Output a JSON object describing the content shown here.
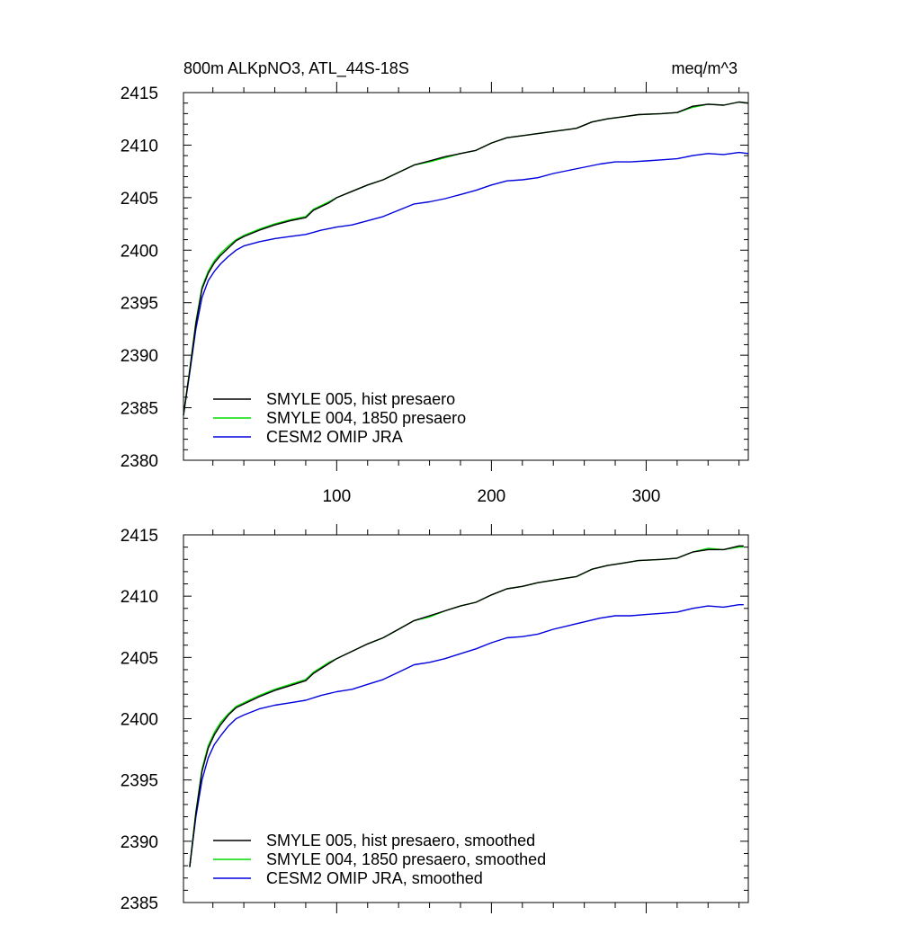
{
  "chart_data": [
    {
      "type": "line",
      "title": "800m ALKpNO3, ATL_44S-18S",
      "units": "meq/m^3",
      "xlim": [
        1,
        366
      ],
      "ylim": [
        2380,
        2415
      ],
      "xticks": [
        100,
        200,
        300
      ],
      "yticks": [
        2380,
        2385,
        2390,
        2395,
        2400,
        2405,
        2410,
        2415
      ],
      "xtick_labels_shown": true,
      "legend_position": "bottom-left",
      "series": [
        {
          "name": "SMYLE 005, hist presaero",
          "color": "#000000",
          "points": [
            [
              1,
              2384.3
            ],
            [
              5,
              2388.5
            ],
            [
              9,
              2393
            ],
            [
              13,
              2396.3
            ],
            [
              17,
              2397.8
            ],
            [
              21,
              2398.8
            ],
            [
              25,
              2399.5
            ],
            [
              30,
              2400.2
            ],
            [
              35,
              2400.9
            ],
            [
              40,
              2401.3
            ],
            [
              50,
              2401.9
            ],
            [
              60,
              2402.4
            ],
            [
              70,
              2402.8
            ],
            [
              80,
              2403.1
            ],
            [
              85,
              2403.8
            ],
            [
              95,
              2404.5
            ],
            [
              100,
              2405
            ],
            [
              110,
              2405.6
            ],
            [
              120,
              2406.2
            ],
            [
              130,
              2406.7
            ],
            [
              140,
              2407.4
            ],
            [
              150,
              2408.1
            ],
            [
              160,
              2408.5
            ],
            [
              170,
              2408.9
            ],
            [
              180,
              2409.2
            ],
            [
              190,
              2409.5
            ],
            [
              200,
              2410.2
            ],
            [
              210,
              2410.7
            ],
            [
              220,
              2410.9
            ],
            [
              230,
              2411.1
            ],
            [
              240,
              2411.3
            ],
            [
              250,
              2411.5
            ],
            [
              255,
              2411.6
            ],
            [
              265,
              2412.2
            ],
            [
              275,
              2412.5
            ],
            [
              285,
              2412.7
            ],
            [
              295,
              2412.9
            ],
            [
              310,
              2413
            ],
            [
              320,
              2413.1
            ],
            [
              330,
              2413.7
            ],
            [
              340,
              2413.9
            ],
            [
              350,
              2413.8
            ],
            [
              360,
              2414.1
            ],
            [
              366,
              2414
            ]
          ]
        },
        {
          "name": "SMYLE 004, 1850 presaero",
          "color": "#00dd00",
          "points": [
            [
              1,
              2384.3
            ],
            [
              5,
              2388.6
            ],
            [
              9,
              2393.2
            ],
            [
              13,
              2396.5
            ],
            [
              17,
              2398
            ],
            [
              21,
              2399
            ],
            [
              25,
              2399.7
            ],
            [
              30,
              2400.4
            ],
            [
              35,
              2401
            ],
            [
              40,
              2401.4
            ],
            [
              50,
              2402
            ],
            [
              60,
              2402.5
            ],
            [
              70,
              2402.9
            ],
            [
              80,
              2403.2
            ],
            [
              85,
              2403.9
            ],
            [
              95,
              2404.6
            ],
            [
              100,
              2405
            ],
            [
              110,
              2405.6
            ],
            [
              120,
              2406.2
            ],
            [
              130,
              2406.7
            ],
            [
              140,
              2407.4
            ],
            [
              150,
              2408.1
            ],
            [
              160,
              2408.4
            ],
            [
              170,
              2408.8
            ],
            [
              180,
              2409.2
            ],
            [
              190,
              2409.5
            ],
            [
              200,
              2410.2
            ],
            [
              210,
              2410.7
            ],
            [
              220,
              2410.9
            ],
            [
              230,
              2411.1
            ],
            [
              240,
              2411.3
            ],
            [
              250,
              2411.5
            ],
            [
              255,
              2411.6
            ],
            [
              265,
              2412.2
            ],
            [
              275,
              2412.5
            ],
            [
              285,
              2412.7
            ],
            [
              295,
              2412.9
            ],
            [
              310,
              2413
            ],
            [
              320,
              2413.1
            ],
            [
              330,
              2413.6
            ],
            [
              340,
              2413.9
            ],
            [
              350,
              2413.8
            ],
            [
              360,
              2414.1
            ],
            [
              366,
              2414
            ]
          ]
        },
        {
          "name": "CESM2 OMIP JRA",
          "color": "#0000dd",
          "points": [
            [
              1,
              2384.3
            ],
            [
              5,
              2388.3
            ],
            [
              9,
              2392.5
            ],
            [
              13,
              2395.5
            ],
            [
              17,
              2397.1
            ],
            [
              21,
              2398
            ],
            [
              25,
              2398.7
            ],
            [
              30,
              2399.4
            ],
            [
              35,
              2400
            ],
            [
              40,
              2400.4
            ],
            [
              50,
              2400.8
            ],
            [
              60,
              2401.1
            ],
            [
              70,
              2401.3
            ],
            [
              80,
              2401.5
            ],
            [
              90,
              2401.9
            ],
            [
              100,
              2402.2
            ],
            [
              110,
              2402.4
            ],
            [
              120,
              2402.8
            ],
            [
              130,
              2403.2
            ],
            [
              140,
              2403.8
            ],
            [
              150,
              2404.4
            ],
            [
              160,
              2404.6
            ],
            [
              170,
              2404.9
            ],
            [
              180,
              2405.3
            ],
            [
              190,
              2405.7
            ],
            [
              200,
              2406.2
            ],
            [
              210,
              2406.6
            ],
            [
              220,
              2406.7
            ],
            [
              230,
              2406.9
            ],
            [
              240,
              2407.3
            ],
            [
              250,
              2407.6
            ],
            [
              260,
              2407.9
            ],
            [
              270,
              2408.2
            ],
            [
              280,
              2408.4
            ],
            [
              290,
              2408.4
            ],
            [
              300,
              2408.5
            ],
            [
              310,
              2408.6
            ],
            [
              320,
              2408.7
            ],
            [
              330,
              2409
            ],
            [
              340,
              2409.2
            ],
            [
              350,
              2409.1
            ],
            [
              360,
              2409.3
            ],
            [
              366,
              2409.2
            ]
          ]
        }
      ]
    },
    {
      "type": "line",
      "xlim": [
        1,
        366
      ],
      "ylim": [
        2385,
        2415
      ],
      "xticks": [
        100,
        200,
        300
      ],
      "yticks": [
        2385,
        2390,
        2395,
        2400,
        2405,
        2410,
        2415
      ],
      "xtick_labels_shown": false,
      "legend_position": "bottom-left",
      "series": [
        {
          "name": "SMYLE 005, hist presaero, smoothed",
          "color": "#000000",
          "points": [
            [
              5,
              2387.9
            ],
            [
              9,
              2392.3
            ],
            [
              13,
              2395.7
            ],
            [
              17,
              2397.6
            ],
            [
              21,
              2398.7
            ],
            [
              25,
              2399.5
            ],
            [
              30,
              2400.3
            ],
            [
              35,
              2400.9
            ],
            [
              40,
              2401.2
            ],
            [
              50,
              2401.8
            ],
            [
              60,
              2402.3
            ],
            [
              70,
              2402.7
            ],
            [
              80,
              2403.1
            ],
            [
              85,
              2403.7
            ],
            [
              95,
              2404.5
            ],
            [
              100,
              2404.9
            ],
            [
              110,
              2405.5
            ],
            [
              120,
              2406.1
            ],
            [
              130,
              2406.6
            ],
            [
              140,
              2407.3
            ],
            [
              150,
              2408
            ],
            [
              160,
              2408.4
            ],
            [
              170,
              2408.8
            ],
            [
              180,
              2409.2
            ],
            [
              190,
              2409.5
            ],
            [
              200,
              2410.1
            ],
            [
              210,
              2410.6
            ],
            [
              220,
              2410.8
            ],
            [
              230,
              2411.1
            ],
            [
              240,
              2411.3
            ],
            [
              250,
              2411.5
            ],
            [
              255,
              2411.6
            ],
            [
              265,
              2412.2
            ],
            [
              275,
              2412.5
            ],
            [
              285,
              2412.7
            ],
            [
              295,
              2412.9
            ],
            [
              310,
              2413
            ],
            [
              320,
              2413.1
            ],
            [
              330,
              2413.6
            ],
            [
              340,
              2413.8
            ],
            [
              350,
              2413.8
            ],
            [
              360,
              2414.1
            ],
            [
              363,
              2414.1
            ]
          ]
        },
        {
          "name": "SMYLE 004, 1850 presaero, smoothed",
          "color": "#00dd00",
          "points": [
            [
              5,
              2387.9
            ],
            [
              9,
              2392.4
            ],
            [
              13,
              2395.9
            ],
            [
              17,
              2397.8
            ],
            [
              21,
              2398.9
            ],
            [
              25,
              2399.7
            ],
            [
              30,
              2400.4
            ],
            [
              35,
              2401
            ],
            [
              40,
              2401.3
            ],
            [
              50,
              2401.9
            ],
            [
              60,
              2402.4
            ],
            [
              70,
              2402.8
            ],
            [
              80,
              2403.2
            ],
            [
              85,
              2403.8
            ],
            [
              95,
              2404.6
            ],
            [
              100,
              2404.9
            ],
            [
              110,
              2405.5
            ],
            [
              120,
              2406.1
            ],
            [
              130,
              2406.6
            ],
            [
              140,
              2407.3
            ],
            [
              150,
              2408
            ],
            [
              160,
              2408.3
            ],
            [
              170,
              2408.8
            ],
            [
              180,
              2409.2
            ],
            [
              190,
              2409.5
            ],
            [
              200,
              2410.1
            ],
            [
              210,
              2410.6
            ],
            [
              220,
              2410.8
            ],
            [
              230,
              2411.1
            ],
            [
              240,
              2411.3
            ],
            [
              250,
              2411.5
            ],
            [
              255,
              2411.6
            ],
            [
              265,
              2412.2
            ],
            [
              275,
              2412.5
            ],
            [
              285,
              2412.7
            ],
            [
              295,
              2412.9
            ],
            [
              310,
              2413
            ],
            [
              320,
              2413.1
            ],
            [
              330,
              2413.6
            ],
            [
              340,
              2413.9
            ],
            [
              350,
              2413.8
            ],
            [
              360,
              2414
            ],
            [
              363,
              2414
            ]
          ]
        },
        {
          "name": "CESM2 OMIP JRA, smoothed",
          "color": "#0000dd",
          "points": [
            [
              5,
              2387.9
            ],
            [
              9,
              2392
            ],
            [
              13,
              2395
            ],
            [
              17,
              2396.8
            ],
            [
              21,
              2397.9
            ],
            [
              25,
              2398.6
            ],
            [
              30,
              2399.4
            ],
            [
              35,
              2400
            ],
            [
              40,
              2400.3
            ],
            [
              50,
              2400.8
            ],
            [
              60,
              2401.1
            ],
            [
              70,
              2401.3
            ],
            [
              80,
              2401.5
            ],
            [
              90,
              2401.9
            ],
            [
              100,
              2402.2
            ],
            [
              110,
              2402.4
            ],
            [
              120,
              2402.8
            ],
            [
              130,
              2403.2
            ],
            [
              140,
              2403.8
            ],
            [
              150,
              2404.4
            ],
            [
              160,
              2404.6
            ],
            [
              170,
              2404.9
            ],
            [
              180,
              2405.3
            ],
            [
              190,
              2405.7
            ],
            [
              200,
              2406.2
            ],
            [
              210,
              2406.6
            ],
            [
              220,
              2406.7
            ],
            [
              230,
              2406.9
            ],
            [
              240,
              2407.3
            ],
            [
              250,
              2407.6
            ],
            [
              260,
              2407.9
            ],
            [
              270,
              2408.2
            ],
            [
              280,
              2408.4
            ],
            [
              290,
              2408.4
            ],
            [
              300,
              2408.5
            ],
            [
              310,
              2408.6
            ],
            [
              320,
              2408.7
            ],
            [
              330,
              2409
            ],
            [
              340,
              2409.2
            ],
            [
              350,
              2409.1
            ],
            [
              360,
              2409.3
            ],
            [
              363,
              2409.3
            ]
          ]
        }
      ]
    }
  ]
}
